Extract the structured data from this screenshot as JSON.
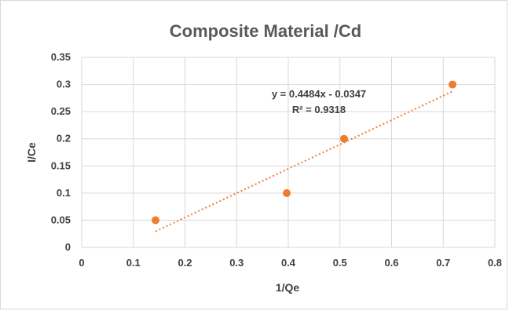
{
  "chart_data": {
    "type": "scatter",
    "title": "Composite Material /Cd",
    "xlabel": "1/Qe",
    "ylabel": "I/Ce",
    "xlim": [
      0,
      0.8
    ],
    "ylim": [
      0,
      0.35
    ],
    "x_ticks": [
      "0",
      "0.1",
      "0.2",
      "0.3",
      "0.4",
      "0.5",
      "0.6",
      "0.7",
      "0.8"
    ],
    "y_ticks": [
      "0",
      "0.05",
      "0.1",
      "0.15",
      "0.2",
      "0.25",
      "0.3",
      "0.35"
    ],
    "grid": true,
    "legend": "none",
    "series": [
      {
        "points": [
          {
            "x": 0.143,
            "y": 0.05
          },
          {
            "x": 0.397,
            "y": 0.1
          },
          {
            "x": 0.508,
            "y": 0.2
          },
          {
            "x": 0.718,
            "y": 0.3
          }
        ],
        "color": "#ed7d31"
      }
    ],
    "trendline": {
      "type": "linear",
      "slope": 0.4484,
      "intercept": -0.0347,
      "x_range": [
        0.143,
        0.718
      ],
      "style": "dotted",
      "color": "#ed7d31",
      "equation_label": "y = 0.4484x - 0.0347",
      "r2_label": "R² = 0.9318"
    }
  }
}
